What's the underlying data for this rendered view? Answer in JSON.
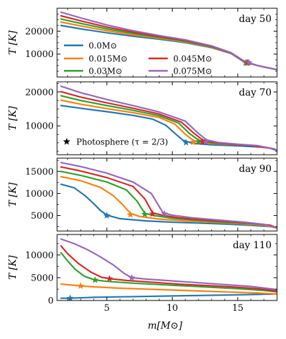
{
  "xlabel": "m[M⊙]",
  "ylabel": "T [K]",
  "legend": {
    "series_title": "",
    "photosphere_label": "Photosphere (τ = 2/3)"
  },
  "chart_data": [
    {
      "type": "line",
      "panel_label": "day 50",
      "xlim": [
        1.2,
        18
      ],
      "ylim": [
        0,
        30000
      ],
      "yticks": [
        10000,
        20000
      ],
      "legend_placement": "left-middle",
      "series": [
        {
          "name": "0.0M⊙",
          "color": "#1f77b4",
          "x": [
            1.5,
            3,
            5,
            7,
            9,
            11,
            13,
            14.5,
            15.5,
            16.5,
            17.5,
            18
          ],
          "y": [
            22500,
            21000,
            19300,
            17800,
            16500,
            15000,
            12800,
            10200,
            6500,
            5000,
            3800,
            3200
          ],
          "star": [
            15.6,
            6200
          ]
        },
        {
          "name": "0.015M⊙",
          "color": "#ff7f0e",
          "x": [
            1.5,
            3,
            5,
            7,
            9,
            11,
            13,
            14.5,
            15.5,
            16.5,
            17.5,
            18
          ],
          "y": [
            24000,
            22300,
            20200,
            18400,
            16900,
            15300,
            13000,
            10300,
            6600,
            5000,
            3800,
            3200
          ],
          "star": [
            15.65,
            6200
          ]
        },
        {
          "name": "0.03M⊙",
          "color": "#2ca02c",
          "x": [
            1.5,
            3,
            5,
            7,
            9,
            11,
            13,
            14.5,
            15.5,
            16.5,
            17.5,
            18
          ],
          "y": [
            25300,
            23400,
            21000,
            19000,
            17300,
            15600,
            13200,
            10400,
            6700,
            5000,
            3800,
            3200
          ],
          "star": [
            15.7,
            6200
          ]
        },
        {
          "name": "0.045M⊙",
          "color": "#d62728",
          "x": [
            1.5,
            3,
            5,
            7,
            9,
            11,
            13,
            14.5,
            15.5,
            16.5,
            17.5,
            18
          ],
          "y": [
            26700,
            24500,
            21800,
            19600,
            17700,
            15900,
            13400,
            10500,
            6800,
            5000,
            3800,
            3200
          ],
          "star": [
            15.75,
            6200
          ]
        },
        {
          "name": "0.075M⊙",
          "color": "#9467bd",
          "x": [
            1.5,
            3,
            5,
            7,
            9,
            11,
            13,
            14.5,
            15.5,
            16.5,
            17.5,
            18
          ],
          "y": [
            28300,
            25800,
            22700,
            20200,
            18100,
            16200,
            13600,
            10600,
            6900,
            5000,
            3800,
            3200
          ],
          "star": [
            15.85,
            6300
          ]
        }
      ]
    },
    {
      "type": "line",
      "panel_label": "day 70",
      "xlim": [
        1.2,
        18
      ],
      "ylim": [
        1500,
        23000
      ],
      "yticks": [
        10000,
        20000
      ],
      "legend_placement": "bottom-left",
      "series": [
        {
          "name": "0.0M⊙",
          "color": "#1f77b4",
          "x": [
            1.5,
            3,
            5,
            7,
            8.5,
            9.5,
            10.2,
            10.8,
            11.5,
            13,
            15,
            17,
            17.8,
            18
          ],
          "y": [
            16000,
            15200,
            14200,
            13100,
            12000,
            10200,
            7800,
            5800,
            4900,
            4400,
            4100,
            3700,
            3200,
            2700
          ],
          "star": [
            11.05,
            5100
          ]
        },
        {
          "name": "0.015M⊙",
          "color": "#ff7f0e",
          "x": [
            1.5,
            3,
            5,
            7,
            9,
            10.2,
            11,
            11.6,
            12.5,
            14,
            16,
            17.5,
            18
          ],
          "y": [
            17600,
            16400,
            15100,
            13900,
            12500,
            10500,
            7500,
            5700,
            5000,
            4600,
            4200,
            3400,
            2700
          ],
          "star": [
            11.6,
            5200
          ]
        },
        {
          "name": "0.03M⊙",
          "color": "#2ca02c",
          "x": [
            1.5,
            3,
            5,
            7,
            9,
            10.5,
            11.3,
            12,
            13,
            14.5,
            16,
            17.5,
            18
          ],
          "y": [
            18900,
            17500,
            16000,
            14600,
            13000,
            10800,
            7800,
            5800,
            5000,
            4600,
            4200,
            3400,
            2700
          ],
          "star": [
            12.0,
            5300
          ]
        },
        {
          "name": "0.045M⊙",
          "color": "#d62728",
          "x": [
            1.5,
            3,
            5,
            7,
            9,
            10.7,
            11.6,
            12.3,
            13.2,
            14.5,
            16,
            17.5,
            18
          ],
          "y": [
            20100,
            18500,
            16800,
            15200,
            13500,
            11100,
            8000,
            5900,
            5100,
            4600,
            4200,
            3400,
            2700
          ],
          "star": [
            12.3,
            5300
          ]
        },
        {
          "name": "0.075M⊙",
          "color": "#9467bd",
          "x": [
            1.5,
            3,
            5,
            7,
            9,
            11,
            11.9,
            12.6,
            13.5,
            15,
            16.5,
            17.5,
            18
          ],
          "y": [
            21700,
            19800,
            17800,
            16000,
            14100,
            11400,
            8100,
            5900,
            5100,
            4600,
            4200,
            3400,
            2700
          ],
          "star": [
            12.6,
            5300
          ]
        }
      ]
    },
    {
      "type": "line",
      "panel_label": "day 90",
      "xlim": [
        1.2,
        18
      ],
      "ylim": [
        1500,
        18000
      ],
      "yticks": [
        5000,
        10000,
        15000
      ],
      "series": [
        {
          "name": "0.0M⊙",
          "color": "#1f77b4",
          "x": [
            1.5,
            2.5,
            3.3,
            4,
            4.5,
            5,
            6,
            8,
            10,
            12,
            14,
            16,
            17.5,
            18
          ],
          "y": [
            12100,
            11300,
            9600,
            7700,
            6200,
            5100,
            4300,
            3800,
            3500,
            3300,
            3100,
            2800,
            2500,
            2200
          ],
          "star": [
            5.0,
            5000
          ]
        },
        {
          "name": "0.015M⊙",
          "color": "#ff7f0e",
          "x": [
            1.5,
            3,
            4.5,
            5.5,
            6.2,
            6.8,
            7.5,
            9,
            11,
            13,
            15,
            17,
            18
          ],
          "y": [
            13800,
            12900,
            11400,
            9500,
            7500,
            5500,
            4800,
            4200,
            3800,
            3500,
            3200,
            2800,
            2200
          ],
          "star": [
            6.8,
            5200
          ]
        },
        {
          "name": "0.03M⊙",
          "color": "#2ca02c",
          "x": [
            1.5,
            3,
            5,
            6.5,
            7.3,
            7.9,
            8.6,
            10,
            12,
            14,
            16,
            17.5,
            18
          ],
          "y": [
            15000,
            14100,
            12600,
            10800,
            8300,
            5500,
            5000,
            4400,
            3900,
            3500,
            3200,
            2800,
            2200
          ],
          "star": [
            7.9,
            5300
          ]
        },
        {
          "name": "0.045M⊙",
          "color": "#d62728",
          "x": [
            1.5,
            3,
            5,
            7,
            7.9,
            8.5,
            9.2,
            10.5,
            12.5,
            14.5,
            16,
            17.5,
            18
          ],
          "y": [
            16000,
            15100,
            13600,
            11600,
            8800,
            5600,
            5100,
            4500,
            4000,
            3600,
            3300,
            2800,
            2200
          ],
          "star": [
            8.5,
            5400
          ]
        },
        {
          "name": "0.075M⊙",
          "color": "#9467bd",
          "x": [
            1.5,
            3,
            5,
            7,
            8.4,
            9.3,
            10,
            11.5,
            13.5,
            15.5,
            17,
            18
          ],
          "y": [
            17000,
            16100,
            14600,
            12600,
            10000,
            5600,
            5100,
            4500,
            4000,
            3500,
            3000,
            2200
          ],
          "star": [
            9.4,
            5400
          ]
        }
      ]
    },
    {
      "type": "line",
      "panel_label": "day 110",
      "xlim": [
        1.2,
        18
      ],
      "ylim": [
        0,
        14500
      ],
      "yticks": [
        0,
        5000,
        10000
      ],
      "series": [
        {
          "name": "0.0M⊙",
          "color": "#1f77b4",
          "x": [
            1.5,
            2.2,
            4,
            6,
            8,
            10,
            12,
            14,
            16,
            17.5,
            18
          ],
          "y": [
            500,
            500,
            700,
            800,
            900,
            1000,
            1100,
            1200,
            1300,
            1400,
            1450
          ],
          "star": [
            2.2,
            500
          ]
        },
        {
          "name": "0.015M⊙",
          "color": "#ff7f0e",
          "x": [
            1.5,
            2.3,
            3,
            4,
            6,
            8,
            10,
            12,
            14,
            16,
            17.5,
            18
          ],
          "y": [
            3600,
            3400,
            3200,
            3000,
            2700,
            2500,
            2300,
            2100,
            1900,
            1700,
            1500,
            1400
          ],
          "star": [
            3.0,
            3200
          ]
        },
        {
          "name": "0.03M⊙",
          "color": "#2ca02c",
          "x": [
            1.5,
            2,
            2.6,
            3.3,
            4.1,
            5,
            7,
            9,
            11,
            13,
            15,
            17,
            18
          ],
          "y": [
            10500,
            8700,
            6800,
            5300,
            4500,
            4200,
            3800,
            3500,
            3200,
            2900,
            2600,
            2200,
            1900
          ],
          "star": [
            4.1,
            4500
          ]
        },
        {
          "name": "0.045M⊙",
          "color": "#d62728",
          "x": [
            1.5,
            2,
            2.8,
            3.8,
            4.6,
            5.2,
            6.5,
            8.5,
            10.5,
            12.5,
            14.5,
            16.5,
            18
          ],
          "y": [
            12000,
            10300,
            8200,
            6200,
            5100,
            4800,
            4400,
            4000,
            3600,
            3300,
            3000,
            2600,
            2100
          ],
          "star": [
            5.2,
            4800
          ]
        },
        {
          "name": "0.075M⊙",
          "color": "#9467bd",
          "x": [
            1.5,
            2.5,
            3.5,
            4.5,
            5.5,
            6.3,
            6.9,
            8,
            10,
            12,
            14,
            16,
            18
          ],
          "y": [
            13500,
            12500,
            11200,
            9600,
            7800,
            6000,
            5000,
            4700,
            4300,
            3900,
            3500,
            3100,
            2400
          ],
          "star": [
            6.9,
            5000
          ]
        }
      ]
    }
  ],
  "xticks": [
    5,
    10,
    15
  ]
}
